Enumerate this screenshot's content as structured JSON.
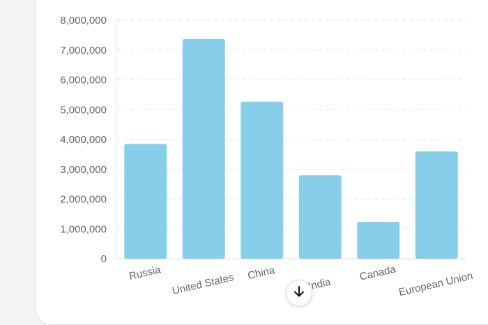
{
  "chart_data": {
    "type": "bar",
    "title": "",
    "xlabel": "",
    "ylabel": "",
    "categories": [
      "Russia",
      "United States",
      "China",
      "India",
      "Canada",
      "European Union"
    ],
    "values": [
      3850000,
      7370000,
      5270000,
      2800000,
      1240000,
      3600000
    ],
    "ylim": [
      0,
      8000000
    ],
    "yticks": [
      0,
      1000000,
      2000000,
      3000000,
      4000000,
      5000000,
      6000000,
      7000000,
      8000000
    ],
    "ytick_labels": [
      "0",
      "1,000,000",
      "2,000,000",
      "3,000,000",
      "4,000,000",
      "5,000,000",
      "6,000,000",
      "7,000,000",
      "8,000,000"
    ],
    "grid": true,
    "bar_color": "#87ceeb"
  },
  "controls": {
    "scroll_down_icon": "arrow-down-icon"
  }
}
